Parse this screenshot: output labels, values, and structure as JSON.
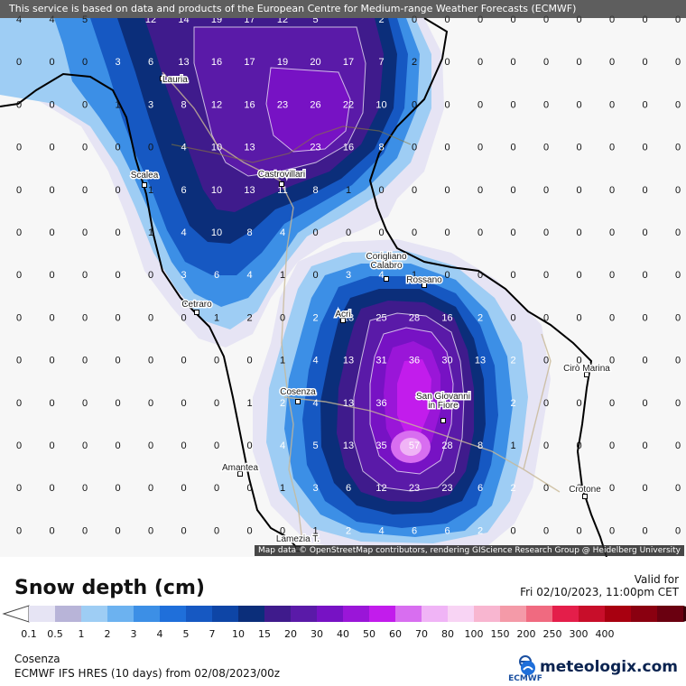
{
  "notice": "This service is based on data and products of the European Centre for Medium-range Weather Forecasts (ECMWF)",
  "credits": "Map data © OpenStreetMap contributors, rendering GIScience Research Group @ Heidelberg University",
  "legend": {
    "title": "Snow depth (cm)",
    "ticks": [
      "0.1",
      "0.5",
      "1",
      "2",
      "3",
      "4",
      "5",
      "7",
      "10",
      "15",
      "20",
      "30",
      "40",
      "50",
      "60",
      "70",
      "80",
      "100",
      "150",
      "200",
      "250",
      "300",
      "400"
    ],
    "colors": [
      "#e6e4f4",
      "#b8b4d8",
      "#9ecdf4",
      "#6cb2f0",
      "#3c8fe6",
      "#1f6fda",
      "#1658c2",
      "#0e45a6",
      "#0b2e7a",
      "#3f1b8c",
      "#5a1aa8",
      "#7712c4",
      "#9a16d8",
      "#c21cec",
      "#d86ef0",
      "#f0b4f6",
      "#f8d4f4",
      "#f8b6d0",
      "#f49aa8",
      "#f06a80",
      "#e41e4a",
      "#c80e2a",
      "#a80010",
      "#8a0010",
      "#6a0010"
    ]
  },
  "valid": {
    "label": "Valid for",
    "datetime": "Fri 02/10/2023, 11:00pm CET"
  },
  "location": "Cosenza",
  "model": "ECMWF IFS HRES (10 days) from 02/08/2023/00z",
  "branding": {
    "ecmwf": "ECMWF",
    "meteologix": "meteologix.com"
  },
  "cities": [
    {
      "name": "Lauria"
    },
    {
      "name": "Scalea"
    },
    {
      "name": "Castrovillari"
    },
    {
      "name": "Corigliano Calabro"
    },
    {
      "name": "Rossano"
    },
    {
      "name": "Cetraro"
    },
    {
      "name": "Acri"
    },
    {
      "name": "Cirò Marina"
    },
    {
      "name": "Cosenza"
    },
    {
      "name": "San Giovanni in Fiore"
    },
    {
      "name": "Amantea"
    },
    {
      "name": "Crotone"
    },
    {
      "name": "Lamezia T."
    }
  ],
  "grid_rows": [
    [
      "4",
      "4",
      "5",
      "",
      "12",
      "14",
      "19",
      "17",
      "12",
      "5",
      "",
      "2",
      "0",
      "0",
      "0",
      "0",
      "0",
      "0",
      "0",
      "0",
      "0"
    ],
    [
      "0",
      "0",
      "0",
      "3",
      "6",
      "13",
      "16",
      "17",
      "19",
      "20",
      "17",
      "7",
      "2",
      "0",
      "0",
      "0",
      "0",
      "0",
      "0",
      "0",
      "0"
    ],
    [
      "0",
      "0",
      "0",
      "1",
      "3",
      "8",
      "12",
      "16",
      "23",
      "26",
      "22",
      "10",
      "0",
      "0",
      "0",
      "0",
      "0",
      "0",
      "0",
      "0",
      "0"
    ],
    [
      "0",
      "0",
      "0",
      "0",
      "0",
      "4",
      "10",
      "13",
      "",
      "23",
      "16",
      "8",
      "0",
      "0",
      "0",
      "0",
      "0",
      "0",
      "0",
      "0",
      "0"
    ],
    [
      "0",
      "0",
      "0",
      "0",
      "1",
      "6",
      "10",
      "13",
      "11",
      "8",
      "1",
      "0",
      "0",
      "0",
      "0",
      "0",
      "0",
      "0",
      "0",
      "0",
      "0"
    ],
    [
      "0",
      "0",
      "0",
      "0",
      "1",
      "4",
      "10",
      "8",
      "4",
      "0",
      "0",
      "0",
      "0",
      "0",
      "0",
      "0",
      "0",
      "0",
      "0",
      "0",
      "0"
    ],
    [
      "0",
      "0",
      "0",
      "0",
      "0",
      "3",
      "6",
      "4",
      "1",
      "0",
      "3",
      "4",
      "1",
      "0",
      "0",
      "0",
      "0",
      "0",
      "0",
      "0",
      "0"
    ],
    [
      "0",
      "0",
      "0",
      "0",
      "0",
      "0",
      "1",
      "2",
      "0",
      "2",
      "13",
      "25",
      "28",
      "16",
      "2",
      "0",
      "0",
      "0",
      "0",
      "0",
      "0"
    ],
    [
      "0",
      "0",
      "0",
      "0",
      "0",
      "0",
      "0",
      "0",
      "1",
      "4",
      "13",
      "31",
      "36",
      "30",
      "13",
      "2",
      "0",
      "0",
      "0",
      "0",
      "0"
    ],
    [
      "0",
      "0",
      "0",
      "0",
      "0",
      "0",
      "0",
      "1",
      "2",
      "4",
      "13",
      "36",
      "",
      "",
      "",
      "2",
      "0",
      "0",
      "0",
      "0",
      "0"
    ],
    [
      "0",
      "0",
      "0",
      "0",
      "0",
      "0",
      "0",
      "0",
      "4",
      "5",
      "13",
      "35",
      "57",
      "28",
      "8",
      "1",
      "0",
      "0",
      "0",
      "0",
      "0"
    ],
    [
      "0",
      "0",
      "0",
      "0",
      "0",
      "0",
      "0",
      "0",
      "1",
      "3",
      "6",
      "12",
      "23",
      "23",
      "6",
      "2",
      "0",
      "0",
      "0",
      "0",
      "0"
    ],
    [
      "0",
      "0",
      "0",
      "0",
      "0",
      "0",
      "0",
      "0",
      "0",
      "1",
      "2",
      "4",
      "6",
      "6",
      "2",
      "0",
      "0",
      "0",
      "0",
      "0",
      "0"
    ]
  ]
}
